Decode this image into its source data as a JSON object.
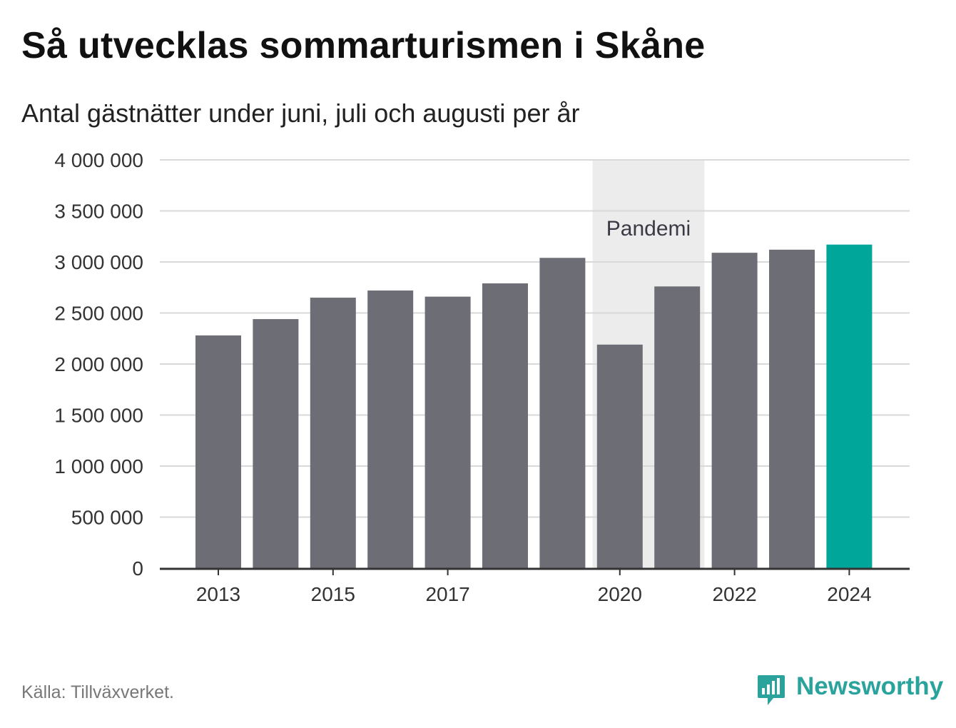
{
  "title": "Så utvecklas sommarturismen i Skåne",
  "subtitle": "Antal gästnätter under juni, juli och augusti per år",
  "source": "Källa: Tillväxverket.",
  "brand": {
    "name": "Newsworthy"
  },
  "colors": {
    "bar": "#6d6d75",
    "highlight": "#00a69a",
    "band": "#ececec",
    "grid": "#d9d9d9",
    "axis": "#333333",
    "brand": "#2aa39c"
  },
  "chart_data": {
    "type": "bar",
    "categories": [
      "2013",
      "2014",
      "2015",
      "2016",
      "2017",
      "2018",
      "2019",
      "2020",
      "2021",
      "2022",
      "2023",
      "2024"
    ],
    "values": [
      2280000,
      2440000,
      2650000,
      2720000,
      2660000,
      2790000,
      3040000,
      2190000,
      2760000,
      3090000,
      3120000,
      3170000
    ],
    "highlight": [
      "2024"
    ],
    "x_tick_labels": [
      "2013",
      "2015",
      "2017",
      "2020",
      "2022",
      "2024"
    ],
    "y_ticks": [
      0,
      500000,
      1000000,
      1500000,
      2000000,
      2500000,
      3000000,
      3500000,
      4000000
    ],
    "y_tick_labels": [
      "0",
      "500 000",
      "1 000 000",
      "1 500 000",
      "2 000 000",
      "2 500 000",
      "3 000 000",
      "3 500 000",
      "4 000 000"
    ],
    "ylim": [
      0,
      4000000
    ],
    "grid": true,
    "annotations": [
      {
        "label": "Pandemi",
        "from": "2020",
        "to": "2021"
      }
    ]
  }
}
